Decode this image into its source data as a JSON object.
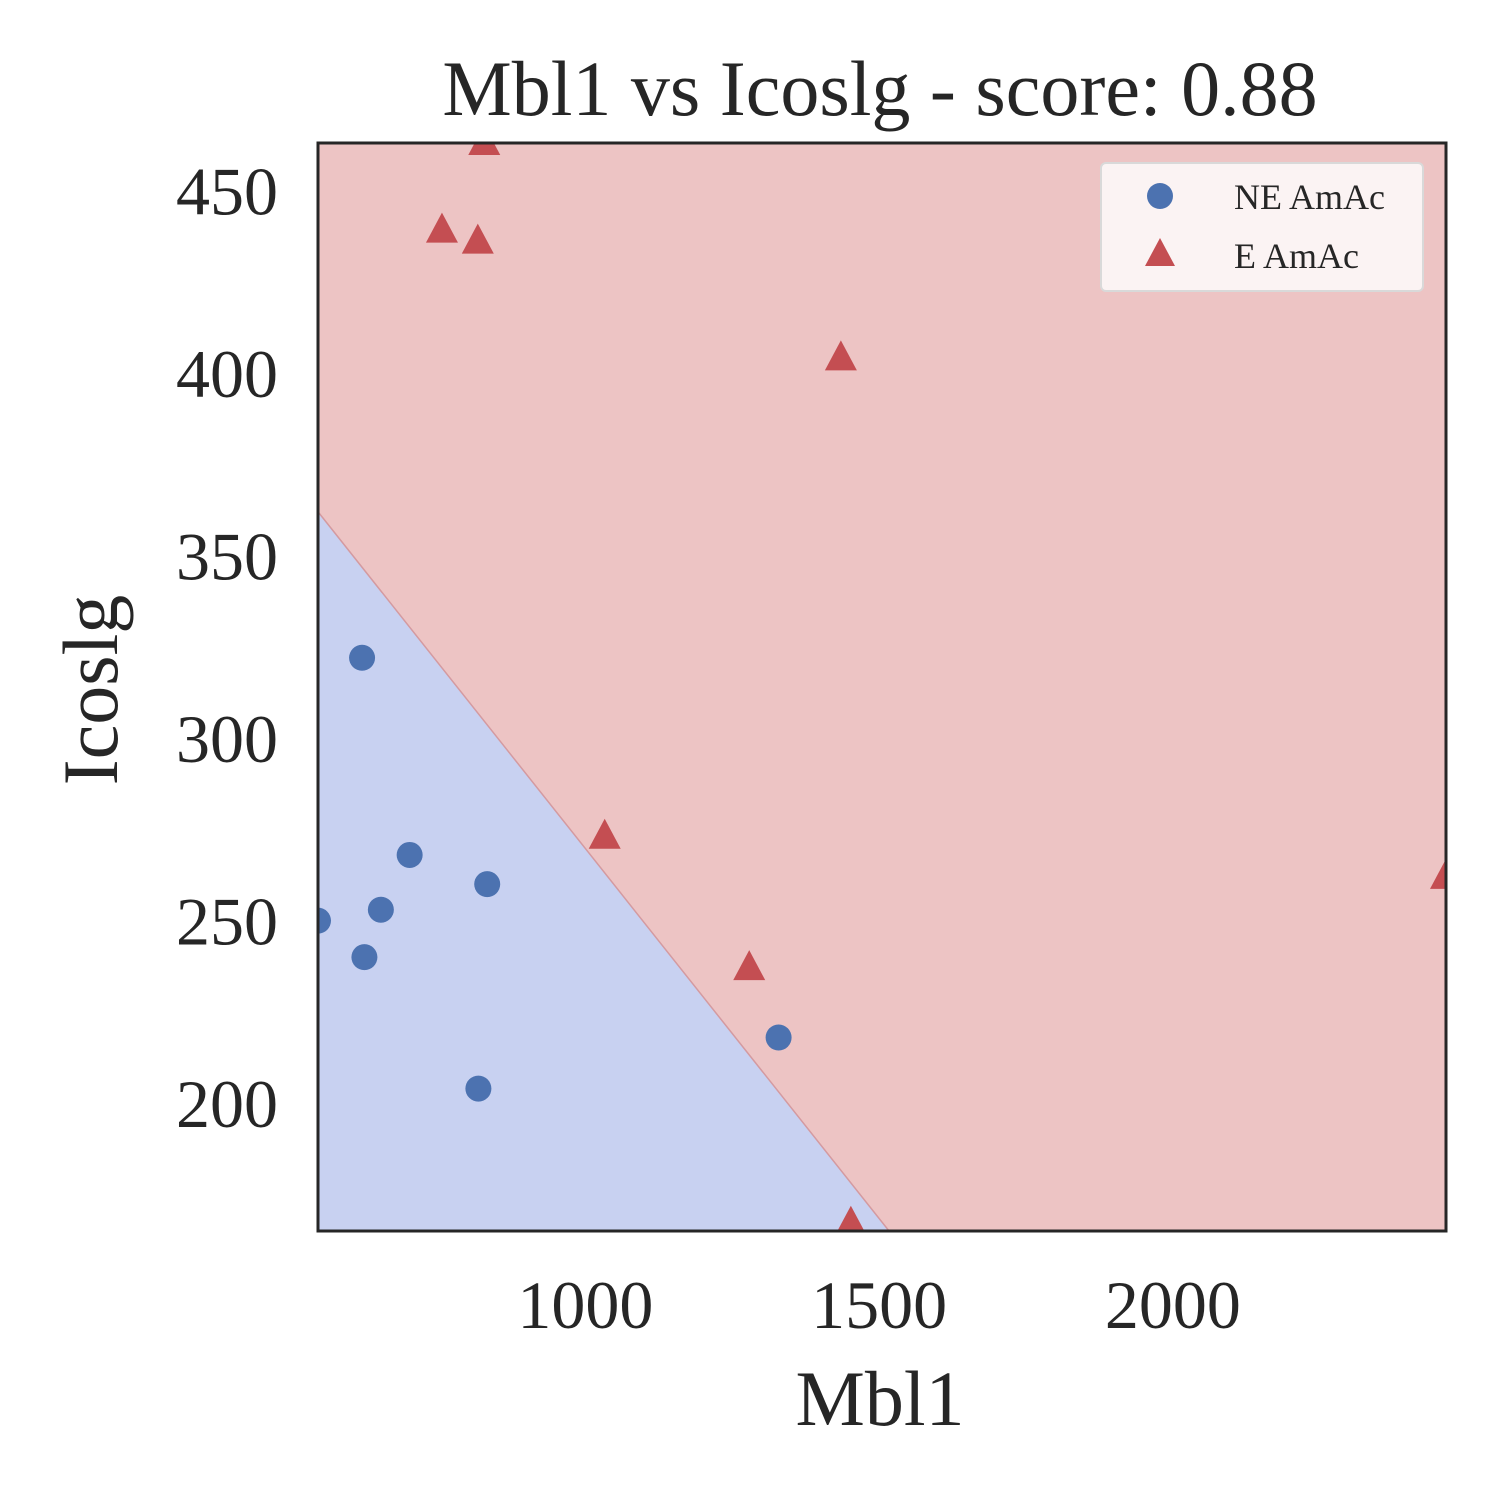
{
  "chart_data": {
    "type": "scatter",
    "title": "Mbl1 vs Icoslg - score: 0.88",
    "xlabel": "Mbl1",
    "ylabel": "Icoslg",
    "xlim": [
      545,
      2465
    ],
    "ylim": [
      165,
      463
    ],
    "x_ticks": [
      1000,
      1500,
      2000
    ],
    "y_ticks": [
      200,
      250,
      300,
      350,
      400,
      450
    ],
    "legend_position": "upper-right",
    "decision_boundary": [
      [
        545,
        362
      ],
      [
        1517,
        165
      ]
    ],
    "regions": [
      {
        "name": "NE AmAc",
        "side": "below-boundary",
        "color": "#c8d1f1"
      },
      {
        "name": "E AmAc",
        "side": "above-boundary",
        "color": "#edc4c4"
      }
    ],
    "series": [
      {
        "name": "NE AmAc",
        "marker": "circle",
        "color": "#4c72b0",
        "points": [
          [
            545,
            250
          ],
          [
            620,
            322
          ],
          [
            624,
            240
          ],
          [
            652,
            253
          ],
          [
            701,
            268
          ],
          [
            818,
            204
          ],
          [
            833,
            260
          ],
          [
            1329,
            218
          ]
        ]
      },
      {
        "name": "E AmAc",
        "marker": "triangle",
        "color": "#c44e52",
        "points": [
          [
            756,
            439
          ],
          [
            817,
            436
          ],
          [
            828,
            463
          ],
          [
            1033,
            273
          ],
          [
            1279,
            237
          ],
          [
            1435,
            404
          ],
          [
            1452,
            167
          ],
          [
            2465,
            262
          ]
        ]
      }
    ]
  }
}
